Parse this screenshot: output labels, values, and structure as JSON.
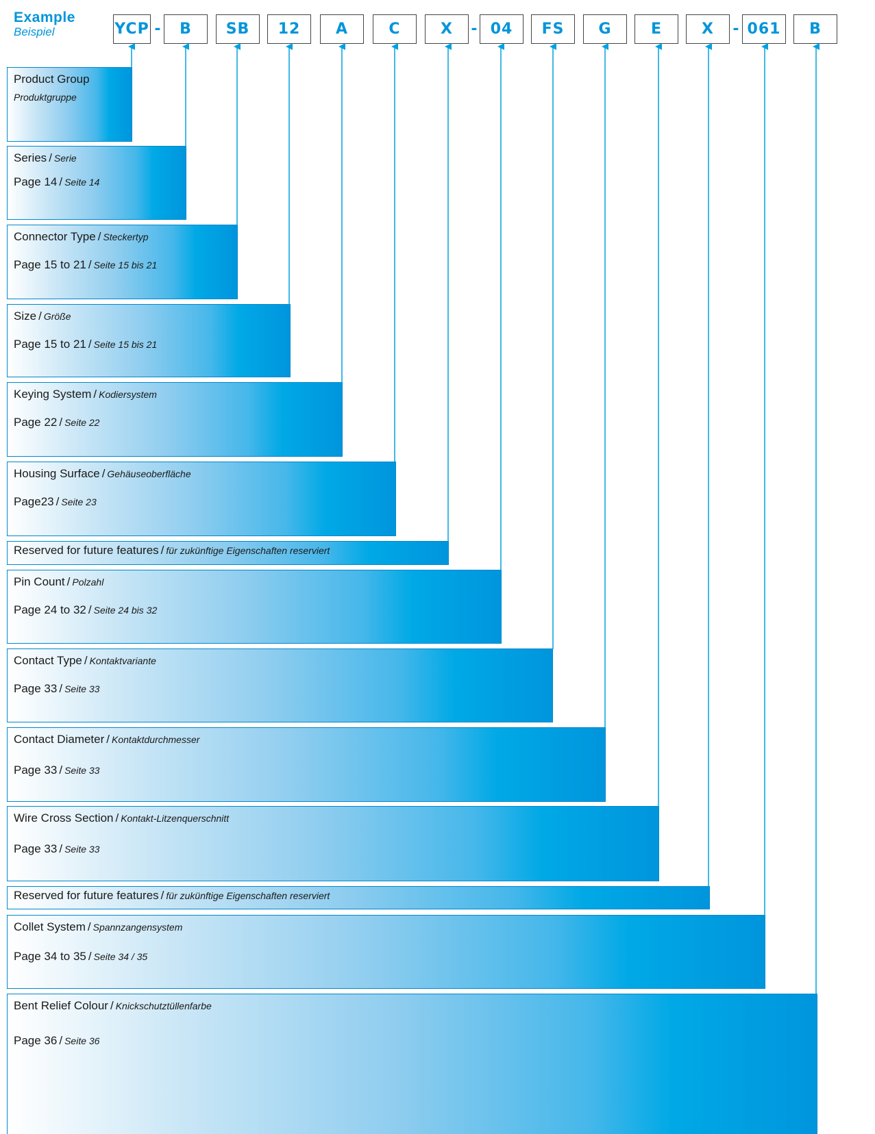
{
  "example": {
    "title": "Example",
    "subtitle": "Beispiel"
  },
  "codes": [
    "YCP",
    "B",
    "SB",
    "12",
    "A",
    "C",
    "X",
    "04",
    "FS",
    "G",
    "E",
    "X",
    "061",
    "B"
  ],
  "dash": "-",
  "blocks": [
    {
      "en": "Product Group",
      "de": "Produktgruppe",
      "layout": "stacked"
    },
    {
      "en": "Series",
      "sep": "/",
      "de": "Serie",
      "page_en": "Page 14",
      "page_sep": "/",
      "page_de": "Seite 14"
    },
    {
      "en": "Connector Type",
      "sep": "/",
      "de": "Steckertyp",
      "page_en": "Page 15 to 21",
      "page_sep": "/",
      "page_de": "Seite 15 bis 21"
    },
    {
      "en": "Size",
      "sep": "/",
      "de": "Größe",
      "page_en": "Page 15 to 21",
      "page_sep": "/",
      "page_de": "Seite 15 bis 21"
    },
    {
      "en": "Keying System",
      "sep": "/",
      "de": "Kodiersystem",
      "page_en": "Page 22",
      "page_sep": "/",
      "page_de": "Seite 22"
    },
    {
      "en": "Housing Surface",
      "sep": "/",
      "de": "Gehäuseoberfläche",
      "page_en": "Page23",
      "page_sep": "/",
      "page_de": "Seite 23"
    },
    {
      "en": "Reserved for future features",
      "sep": "/",
      "de": "für zukünftige Eigenschaften reserviert",
      "layout": "thin"
    },
    {
      "en": "Pin Count",
      "sep": "/",
      "de": "Polzahl",
      "page_en": "Page 24 to 32",
      "page_sep": "/",
      "page_de": "Seite 24 bis 32"
    },
    {
      "en": "Contact Type",
      "sep": "/",
      "de": "Kontaktvariante",
      "page_en": "Page 33",
      "page_sep": "/",
      "page_de": "Seite 33"
    },
    {
      "en": "Contact Diameter",
      "sep": "/",
      "de": "Kontaktdurchmesser",
      "page_en": "Page 33",
      "page_sep": "/",
      "page_de": "Seite 33"
    },
    {
      "en": "Wire Cross Section",
      "sep": "/",
      "de": "Kontakt-Litzenquerschnitt",
      "page_en": "Page 33",
      "page_sep": "/",
      "page_de": "Seite 33"
    },
    {
      "en": "Reserved for future features",
      "sep": "/",
      "de": "für zukünftige Eigenschaften reserviert",
      "layout": "thin"
    },
    {
      "en": "Collet System",
      "sep": "/",
      "de": "Spannzangensystem",
      "page_en": "Page 34 to 35",
      "page_sep": "/",
      "page_de": "Seite 34 / 35"
    },
    {
      "en": "Bent Relief Colour",
      "sep": "/",
      "de": "Knickschutztüllenfarbe",
      "page_en": "Page 36",
      "page_sep": "/",
      "page_de": "Seite 36"
    }
  ],
  "colors": {
    "accent": "#0095d9",
    "arrow": "#00a0e0",
    "box_border": "#444444"
  }
}
